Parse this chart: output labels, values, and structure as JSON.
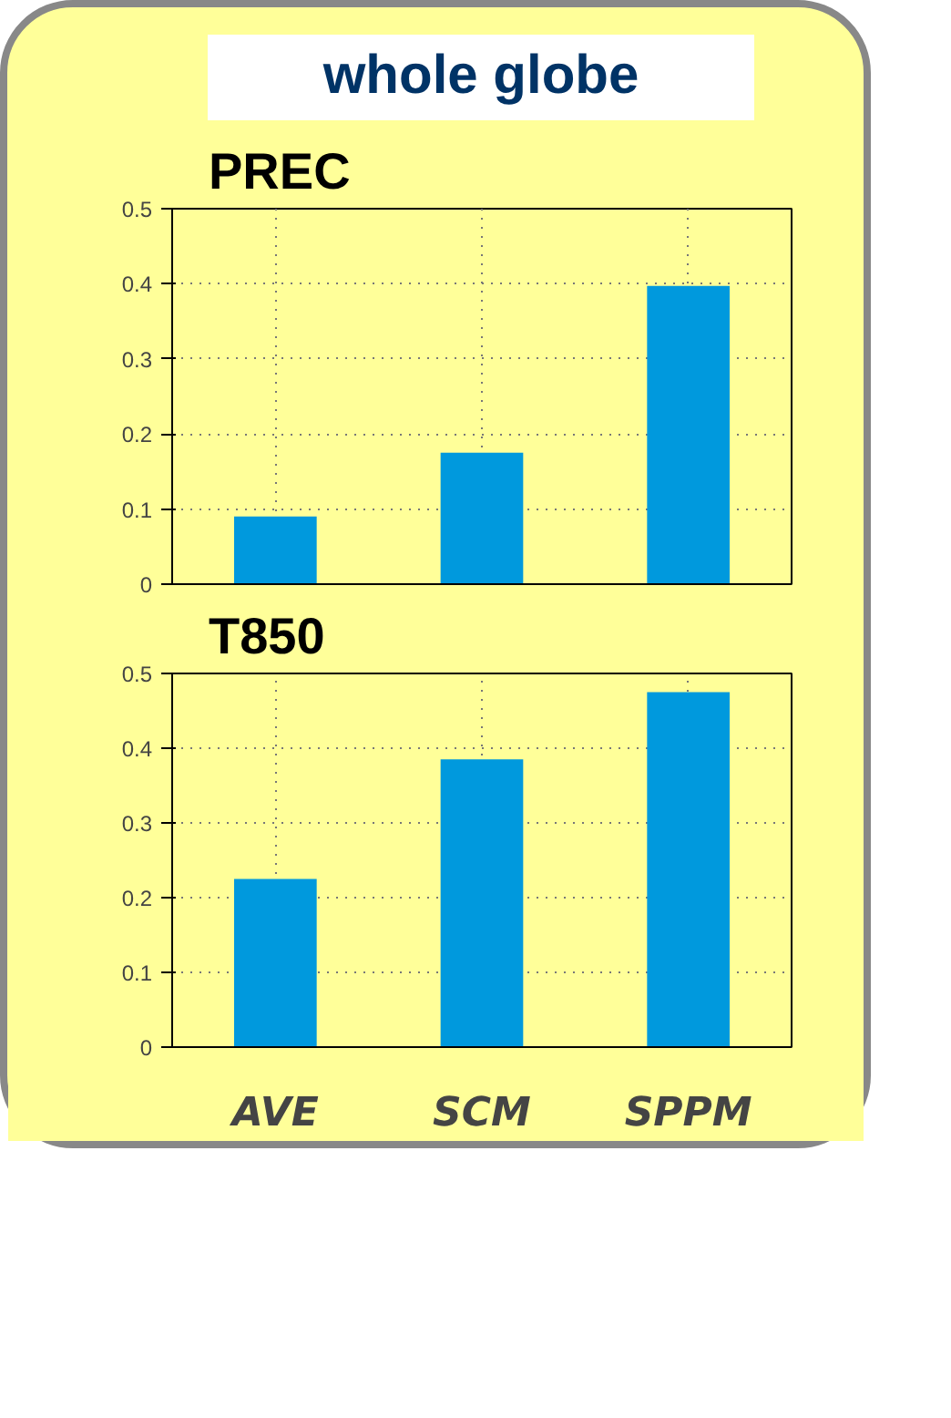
{
  "chart_data": [
    {
      "type": "bar",
      "title": "PREC",
      "annotations": [
        "whole globe"
      ],
      "categories": [
        null,
        null,
        null
      ],
      "values": [
        0.09,
        0.175,
        0.397
      ],
      "color": "#0099dd",
      "ylim": [
        0,
        0.5
      ],
      "yticks": [
        0,
        0.1,
        0.2,
        0.3,
        0.4,
        0.5
      ],
      "grid": true,
      "tick_labels": "y"
    },
    {
      "type": "bar",
      "title": "T850",
      "categories": [
        "AVE",
        "SCM",
        "SPPM"
      ],
      "values": [
        0.225,
        0.385,
        0.475
      ],
      "color": "#0099dd",
      "ylim": [
        0,
        0.5
      ],
      "yticks": [
        0,
        0.1,
        0.2,
        0.3,
        0.4,
        0.5
      ],
      "grid": true
    }
  ]
}
